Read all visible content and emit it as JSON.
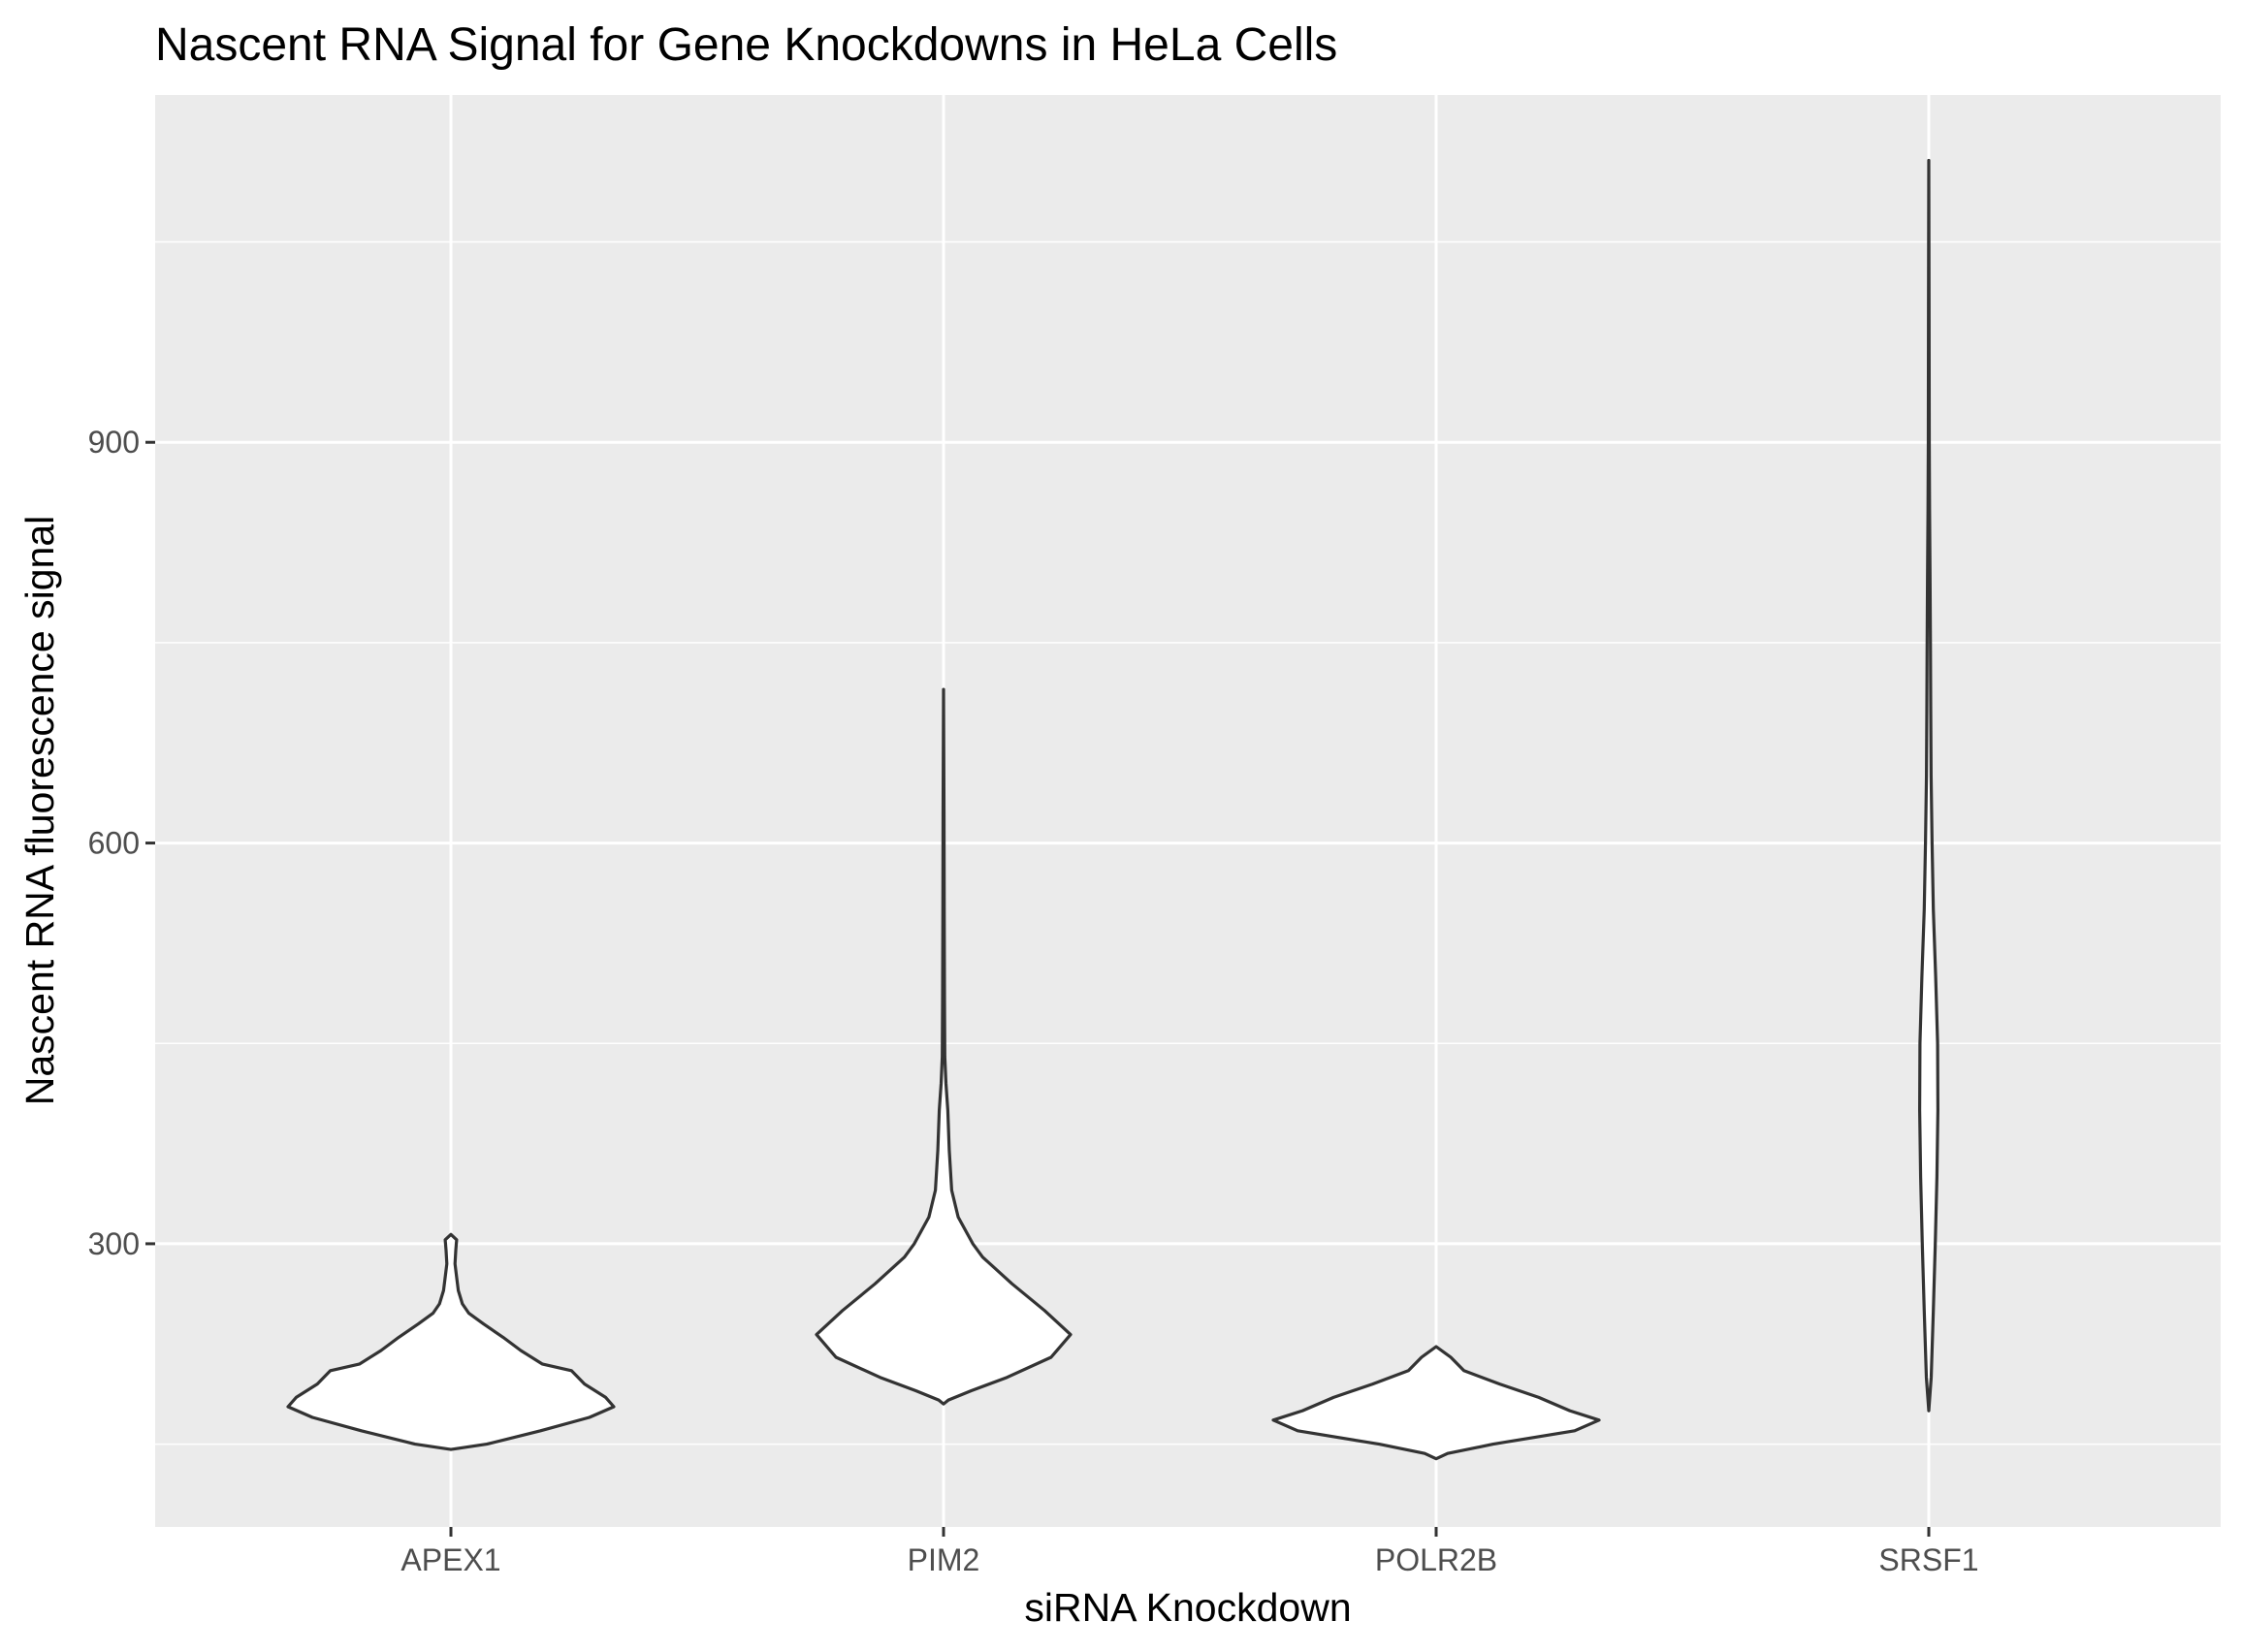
{
  "chart_data": {
    "type": "violin",
    "title": "Nascent RNA Signal for Gene Knockdowns in HeLa Cells",
    "xlabel": "siRNA Knockdown",
    "ylabel": "Nascent RNA fluorescence signal",
    "categories": [
      "APEX1",
      "PIM2",
      "POLR2B",
      "SRSF1"
    ],
    "y_ticks": [
      300,
      600,
      900
    ],
    "y_tick_labels": [
      "300",
      "600",
      "900"
    ],
    "ylim": [
      88,
      1160
    ],
    "grid": true,
    "background": "#ebebeb",
    "grid_color": "#ffffff",
    "violin_fill": "#ffffff",
    "violin_stroke": "#333333",
    "violins": [
      {
        "category": "APEX1",
        "profile": [
          [
            146,
            0.0
          ],
          [
            150,
            0.22
          ],
          [
            160,
            0.55
          ],
          [
            170,
            0.85
          ],
          [
            178,
            1.0
          ],
          [
            185,
            0.95
          ],
          [
            195,
            0.82
          ],
          [
            205,
            0.74
          ],
          [
            210,
            0.56
          ],
          [
            220,
            0.43
          ],
          [
            230,
            0.32
          ],
          [
            240,
            0.2
          ],
          [
            248,
            0.11
          ],
          [
            255,
            0.07
          ],
          [
            265,
            0.045
          ],
          [
            275,
            0.035
          ],
          [
            285,
            0.025
          ],
          [
            295,
            0.03
          ],
          [
            303,
            0.035
          ],
          [
            307,
            0.0
          ]
        ]
      },
      {
        "category": "PIM2",
        "profile": [
          [
            180,
            0.0
          ],
          [
            183,
            0.03
          ],
          [
            190,
            0.17
          ],
          [
            200,
            0.39
          ],
          [
            215,
            0.66
          ],
          [
            232,
            0.78
          ],
          [
            250,
            0.62
          ],
          [
            270,
            0.42
          ],
          [
            290,
            0.24
          ],
          [
            300,
            0.18
          ],
          [
            320,
            0.09
          ],
          [
            340,
            0.05
          ],
          [
            370,
            0.035
          ],
          [
            400,
            0.026
          ],
          [
            420,
            0.015
          ],
          [
            440,
            0.008
          ],
          [
            480,
            0.006
          ],
          [
            550,
            0.004
          ],
          [
            620,
            0.003
          ],
          [
            715,
            0.0
          ]
        ]
      },
      {
        "category": "POLR2B",
        "profile": [
          [
            139,
            0.0
          ],
          [
            143,
            0.07
          ],
          [
            150,
            0.35
          ],
          [
            160,
            0.85
          ],
          [
            168,
            1.0
          ],
          [
            175,
            0.82
          ],
          [
            185,
            0.63
          ],
          [
            195,
            0.39
          ],
          [
            205,
            0.17
          ],
          [
            215,
            0.09
          ],
          [
            223,
            0.0
          ]
        ]
      },
      {
        "category": "SRSF1",
        "profile": [
          [
            175,
            0.0
          ],
          [
            200,
            0.015
          ],
          [
            250,
            0.028
          ],
          [
            300,
            0.04
          ],
          [
            350,
            0.05
          ],
          [
            400,
            0.056
          ],
          [
            450,
            0.054
          ],
          [
            500,
            0.042
          ],
          [
            550,
            0.028
          ],
          [
            600,
            0.02
          ],
          [
            650,
            0.014
          ],
          [
            700,
            0.012
          ],
          [
            750,
            0.01
          ],
          [
            800,
            0.008
          ],
          [
            850,
            0.005
          ],
          [
            900,
            0.003
          ],
          [
            1000,
            0.002
          ],
          [
            1111,
            0.0
          ]
        ]
      }
    ]
  }
}
